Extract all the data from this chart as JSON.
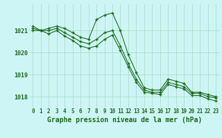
{
  "title": "Graphe pression niveau de la mer (hPa)",
  "background_color": "#cef5f5",
  "grid_color": "#aaddcc",
  "line_color": "#1a6b1a",
  "marker": "+",
  "x_labels": [
    "0",
    "1",
    "2",
    "3",
    "4",
    "5",
    "6",
    "7",
    "8",
    "9",
    "10",
    "11",
    "12",
    "13",
    "14",
    "15",
    "16",
    "17",
    "18",
    "19",
    "20",
    "21",
    "22",
    "23"
  ],
  "hours": [
    0,
    1,
    2,
    3,
    4,
    5,
    6,
    7,
    8,
    9,
    10,
    11,
    12,
    13,
    14,
    15,
    16,
    17,
    18,
    19,
    20,
    21,
    22,
    23
  ],
  "line1": [
    1021.2,
    1021.0,
    1021.1,
    1021.2,
    1021.1,
    1020.9,
    1020.7,
    1020.6,
    1021.5,
    1021.7,
    1021.8,
    1021.0,
    1019.9,
    1019.1,
    1018.4,
    1018.3,
    1018.3,
    1018.8,
    1018.7,
    1018.6,
    1018.2,
    1018.2,
    1018.1,
    1018.0
  ],
  "line2": [
    1021.1,
    1021.0,
    1021.0,
    1021.1,
    1020.9,
    1020.7,
    1020.5,
    1020.4,
    1020.6,
    1020.9,
    1021.0,
    1020.3,
    1019.5,
    1018.8,
    1018.3,
    1018.2,
    1018.2,
    1018.65,
    1018.55,
    1018.45,
    1018.15,
    1018.15,
    1018.0,
    1017.95
  ],
  "line3": [
    1021.0,
    1021.0,
    1020.85,
    1021.0,
    1020.75,
    1020.55,
    1020.3,
    1020.2,
    1020.3,
    1020.6,
    1020.8,
    1020.1,
    1019.35,
    1018.65,
    1018.2,
    1018.15,
    1018.1,
    1018.55,
    1018.45,
    1018.35,
    1018.05,
    1018.05,
    1017.9,
    1017.8
  ],
  "ylim": [
    1017.5,
    1022.2
  ],
  "yticks": [
    1018,
    1019,
    1020,
    1021
  ],
  "figsize": [
    3.2,
    2.0
  ],
  "dpi": 100
}
